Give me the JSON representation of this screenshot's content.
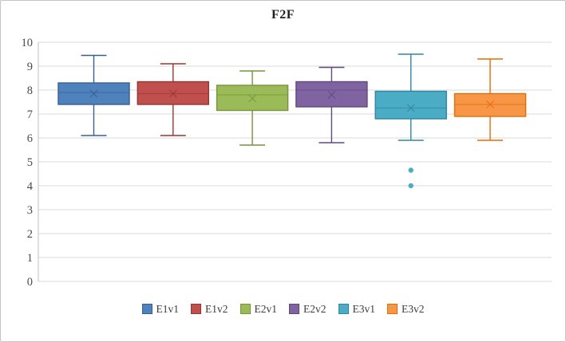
{
  "title": "F2F",
  "chart_data": {
    "type": "boxplot",
    "title": "F2F",
    "xlabel": "",
    "ylabel": "",
    "ylim": [
      0,
      10
    ],
    "yticks": [
      10,
      9,
      8,
      7,
      6,
      5,
      4,
      3,
      2,
      1,
      0
    ],
    "grid": true,
    "legend_position": "bottom",
    "categories": [
      "E1v1",
      "E1v2",
      "E2v1",
      "E2v2",
      "E3v1",
      "E3v2"
    ],
    "series": [
      {
        "name": "E1v1",
        "color": "#4F81BD",
        "border_color": "#38608F",
        "min": 6.1,
        "q1": 7.4,
        "median": 7.9,
        "mean": 7.85,
        "q3": 8.3,
        "max": 9.45,
        "outliers": []
      },
      {
        "name": "E1v2",
        "color": "#C0504D",
        "border_color": "#943634",
        "min": 6.1,
        "q1": 7.4,
        "median": 7.85,
        "mean": 7.85,
        "q3": 8.35,
        "max": 9.1,
        "outliers": []
      },
      {
        "name": "E2v1",
        "color": "#9BBB59",
        "border_color": "#77933C",
        "min": 5.7,
        "q1": 7.15,
        "median": 7.8,
        "mean": 7.65,
        "q3": 8.2,
        "max": 8.8,
        "outliers": []
      },
      {
        "name": "E2v2",
        "color": "#8064A2",
        "border_color": "#5F497A",
        "min": 5.8,
        "q1": 7.3,
        "median": 8.0,
        "mean": 7.8,
        "q3": 8.35,
        "max": 8.95,
        "outliers": []
      },
      {
        "name": "E3v1",
        "color": "#4BACC6",
        "border_color": "#31859C",
        "min": 5.9,
        "q1": 6.8,
        "median": 7.25,
        "mean": 7.25,
        "q3": 7.95,
        "max": 9.5,
        "outliers": [
          4.65,
          4.0
        ]
      },
      {
        "name": "E3v2",
        "color": "#F79646",
        "border_color": "#E36C0A",
        "min": 5.9,
        "q1": 6.9,
        "median": 7.4,
        "mean": 7.4,
        "q3": 7.85,
        "max": 9.3,
        "outliers": []
      }
    ]
  },
  "colors": {
    "gridline": "#D9D9D9",
    "axis_line": "#BFBFBF",
    "tick_label": "#4a4a4a",
    "title_text": "#1f1f1f",
    "background": "#ffffff"
  }
}
